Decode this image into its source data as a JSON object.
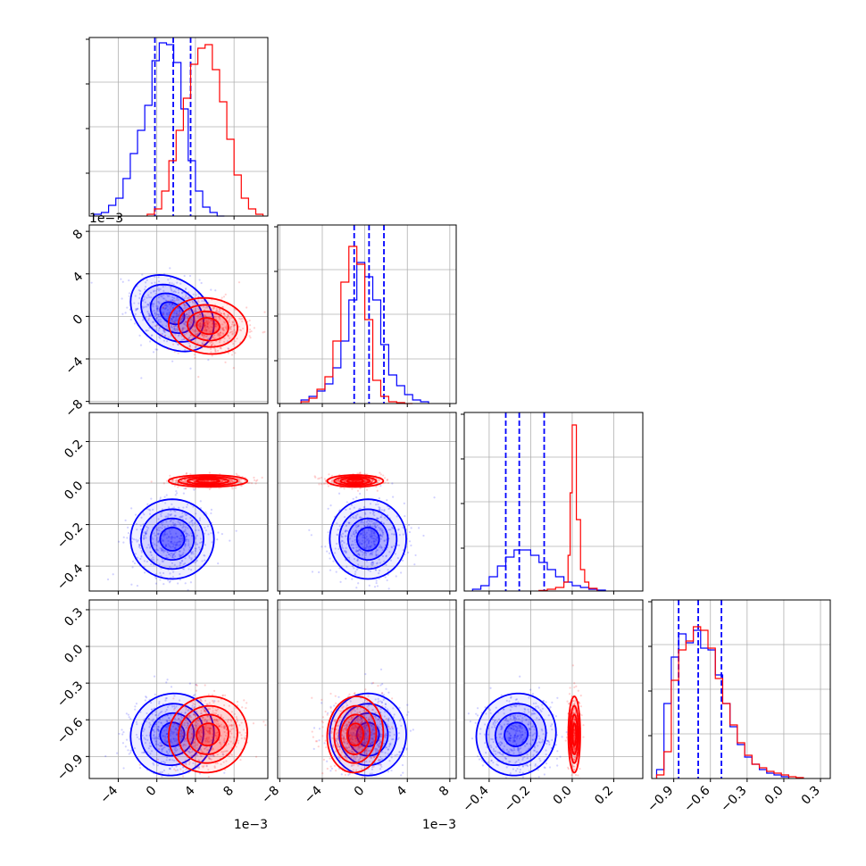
{
  "colors": {
    "series_blue": "#0000ff",
    "series_red": "#ff0000",
    "grid": "#b0b0b0",
    "axes": "#000000"
  },
  "chart_data": {
    "type": "corner",
    "title": "",
    "legend": "none",
    "grid": true,
    "parameters": [
      {
        "label": "",
        "offset_text": "1e−3",
        "range": [
          -7,
          11.5
        ],
        "ticks": [
          -4,
          0,
          4,
          8
        ],
        "tick_labels": [
          "−4",
          "0",
          "4",
          "8"
        ]
      },
      {
        "label": "",
        "offset_text": "1e−3",
        "range": [
          -8.2,
          8.6
        ],
        "ticks": [
          -8,
          -4,
          0,
          4,
          8
        ],
        "tick_labels": [
          "−8",
          "−4",
          "0",
          "4",
          "8"
        ]
      },
      {
        "label": "",
        "offset_text": "",
        "range": [
          -0.52,
          0.34
        ],
        "ticks": [
          -0.4,
          -0.2,
          0.0,
          0.2
        ],
        "tick_labels": [
          "−0.4",
          "−0.2",
          "0.0",
          "0.2"
        ]
      },
      {
        "label": "",
        "offset_text": "",
        "range": [
          -1.08,
          0.38
        ],
        "ticks": [
          -0.9,
          -0.6,
          -0.3,
          0.0,
          0.3
        ],
        "tick_labels": [
          "−0.9",
          "−0.6",
          "−0.3",
          "0.0",
          "0.3"
        ]
      }
    ],
    "series": [
      {
        "color": "blue",
        "quantiles": [
          [
            -0.2,
            1.7,
            3.5
          ],
          [
            -1.0,
            0.4,
            1.8
          ],
          [
            -0.32,
            -0.255,
            -0.135
          ],
          [
            -0.86,
            -0.7,
            -0.51
          ]
        ],
        "means": [
          1.6,
          0.3,
          -0.27,
          -0.72
        ],
        "sds": [
          1.8,
          1.5,
          0.08,
          0.14
        ],
        "corr": {
          "0-1": -0.3,
          "0-2": 0.0,
          "0-3": 0.05,
          "1-2": 0.0,
          "1-3": 0.0,
          "2-3": 0.05
        },
        "histograms": [
          {
            "edges": [
              -6.5,
              -5.75,
              -5.0,
              -4.25,
              -3.5,
              -2.75,
              -2.0,
              -1.25,
              -0.5,
              0.25,
              1.0,
              1.75,
              2.5,
              3.25,
              4.0,
              4.75,
              5.5,
              6.25,
              7.0
            ],
            "counts": [
              0.01,
              0.02,
              0.06,
              0.1,
              0.21,
              0.35,
              0.48,
              0.62,
              0.87,
              0.97,
              0.96,
              0.86,
              0.6,
              0.31,
              0.14,
              0.05,
              0.02,
              0.0
            ]
          },
          {
            "edges": [
              -6.0,
              -5.25,
              -4.5,
              -3.75,
              -3.0,
              -2.25,
              -1.5,
              -0.75,
              0.0,
              0.75,
              1.5,
              2.25,
              3.0,
              3.75,
              4.5,
              5.25,
              6.0
            ],
            "counts": [
              0.02,
              0.04,
              0.07,
              0.11,
              0.2,
              0.35,
              0.58,
              0.79,
              0.71,
              0.58,
              0.33,
              0.16,
              0.1,
              0.05,
              0.02,
              0.01
            ]
          },
          {
            "edges": [
              -0.48,
              -0.44,
              -0.4,
              -0.36,
              -0.32,
              -0.28,
              -0.24,
              -0.2,
              -0.16,
              -0.12,
              -0.08,
              -0.04,
              0.0,
              0.04,
              0.08,
              0.12,
              0.16
            ],
            "counts": [
              0.01,
              0.03,
              0.08,
              0.14,
              0.19,
              0.23,
              0.23,
              0.2,
              0.16,
              0.12,
              0.08,
              0.05,
              0.03,
              0.02,
              0.01,
              0.005
            ]
          },
          {
            "edges": [
              -1.04,
              -0.98,
              -0.92,
              -0.86,
              -0.8,
              -0.74,
              -0.68,
              -0.62,
              -0.56,
              -0.5,
              -0.44,
              -0.38,
              -0.32,
              -0.26,
              -0.2,
              -0.14,
              -0.08,
              -0.02,
              0.04
            ],
            "counts": [
              0.05,
              0.42,
              0.68,
              0.81,
              0.76,
              0.83,
              0.73,
              0.72,
              0.58,
              0.42,
              0.29,
              0.19,
              0.12,
              0.08,
              0.05,
              0.03,
              0.02,
              0.01
            ]
          }
        ]
      },
      {
        "color": "red",
        "means": [
          5.3,
          -0.9,
          0.01,
          -0.72
        ],
        "sds": [
          1.7,
          1.1,
          0.012,
          0.13
        ],
        "corr": {
          "0-1": -0.1,
          "0-2": 0.0,
          "0-3": 0.05,
          "1-2": 0.0,
          "1-3": 0.05,
          "2-3": 0.0
        },
        "histograms": [
          {
            "edges": [
              -1.0,
              -0.25,
              0.5,
              1.25,
              2.0,
              2.75,
              3.5,
              4.25,
              5.0,
              5.75,
              6.5,
              7.25,
              8.0,
              8.75,
              9.5,
              10.25,
              11.0
            ],
            "counts": [
              0.01,
              0.04,
              0.14,
              0.31,
              0.48,
              0.66,
              0.85,
              0.94,
              0.96,
              0.82,
              0.64,
              0.43,
              0.23,
              0.1,
              0.04,
              0.01
            ]
          },
          {
            "edges": [
              -6.0,
              -5.25,
              -4.5,
              -3.75,
              -3.0,
              -2.25,
              -1.5,
              -0.75,
              0.0,
              0.75,
              1.5,
              2.25,
              3.0,
              3.75,
              4.5
            ],
            "counts": [
              0.01,
              0.03,
              0.08,
              0.15,
              0.35,
              0.68,
              0.88,
              0.78,
              0.47,
              0.13,
              0.04,
              0.01,
              0.005,
              0.0
            ]
          },
          {
            "edges": [
              -0.16,
              -0.12,
              -0.08,
              -0.04,
              -0.02,
              -0.01,
              0.0,
              0.02,
              0.04,
              0.06,
              0.08,
              0.12
            ],
            "counts": [
              0.003,
              0.01,
              0.02,
              0.05,
              0.2,
              0.55,
              0.93,
              0.4,
              0.12,
              0.05,
              0.015
            ]
          },
          {
            "edges": [
              -1.04,
              -0.98,
              -0.92,
              -0.86,
              -0.8,
              -0.74,
              -0.68,
              -0.62,
              -0.56,
              -0.5,
              -0.44,
              -0.38,
              -0.32,
              -0.26,
              -0.2,
              -0.14,
              -0.08,
              -0.02,
              0.04,
              0.1,
              0.16
            ],
            "counts": [
              0.02,
              0.15,
              0.55,
              0.72,
              0.77,
              0.85,
              0.83,
              0.73,
              0.56,
              0.42,
              0.3,
              0.2,
              0.13,
              0.08,
              0.06,
              0.04,
              0.03,
              0.02,
              0.01,
              0.005
            ]
          }
        ]
      }
    ]
  }
}
